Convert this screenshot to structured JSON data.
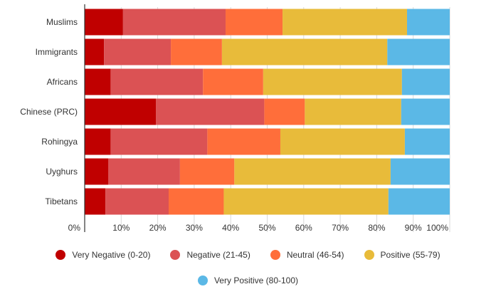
{
  "chart_data": {
    "type": "bar",
    "orientation": "horizontal",
    "stacked": true,
    "categories": [
      "Muslims",
      "Immigrants",
      "Africans",
      "Chinese (PRC)",
      "Rohingya",
      "Uyghurs",
      "Tibetans"
    ],
    "series": [
      {
        "name": "Very Negative (0-20)",
        "color": "#C00000",
        "values": [
          10.5,
          5.3,
          7.1,
          19.5,
          7.1,
          6.5,
          5.7
        ]
      },
      {
        "name": "Negative (21-45)",
        "color": "#DB5254",
        "values": [
          28.1,
          18.3,
          25.3,
          29.7,
          26.5,
          19.6,
          17.3
        ]
      },
      {
        "name": "Neutral (46-54)",
        "color": "#FF6E3A",
        "values": [
          15.6,
          14.0,
          16.5,
          11.1,
          20.0,
          14.9,
          15.1
        ]
      },
      {
        "name": "Positive (55-79)",
        "color": "#E8BB3A",
        "values": [
          34.1,
          45.3,
          38.0,
          26.4,
          34.1,
          42.8,
          45.1
        ]
      },
      {
        "name": "Very Positive (80-100)",
        "color": "#5BB8E6",
        "values": [
          11.7,
          17.1,
          13.1,
          13.3,
          12.3,
          16.2,
          16.8
        ]
      }
    ],
    "xlim": [
      0,
      100
    ],
    "xticks": [
      "0%",
      "10%",
      "20%",
      "30%",
      "40%",
      "50%",
      "60%",
      "70%",
      "80%",
      "90%",
      "100%"
    ],
    "grid": true,
    "legend_position": "bottom"
  },
  "legend_rows": [
    [
      0,
      1,
      2,
      3
    ],
    [
      4
    ]
  ]
}
